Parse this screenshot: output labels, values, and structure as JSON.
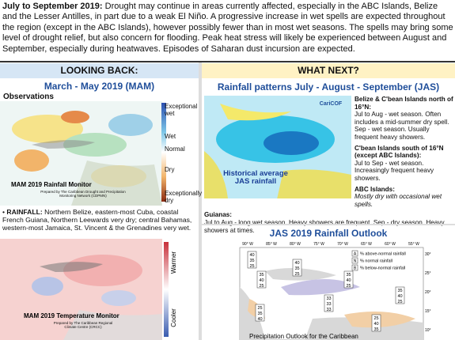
{
  "intro": {
    "lead": "July to September 2019:",
    "text": "Drought may continue in areas currently affected, especially in the ABC Islands, Belize and the Lesser Antilles, in part due to a weak El Niño. A progressive increase in wet spells are expected throughout the region (except in the ABC Islands), however possibly fewer than in most wet seasons. The spells may bring some level of drought relief, but also concern for flooding. Peak heat stress will likely be experienced between August and September, especially during heatwaves. Episodes of Saharan dust incursion are expected."
  },
  "looking_back": {
    "header": "LOOKING BACK:",
    "title": "March - May 2019 (MAM)",
    "subtitle": "Observations",
    "rain_map": {
      "caption": "MAM 2019 Rainfall Monitor",
      "credit": "Prepared by The Caribbean Drought and Precipitation Monitoring Network (CDPMN)",
      "legend": [
        "Exceptional wet",
        "Wet",
        "Normal",
        "Dry",
        "Exceptionally dry"
      ]
    },
    "rainfall": {
      "lead": "RAINFALL:",
      "text": "Northern Belize, eastern-most Cuba, coastal French Guiana, Northern Leewards very dry; central Bahamas, western-most Jamaica, St. Vincent & the Grenadines very wet."
    },
    "temp_map": {
      "caption": "MAM 2019 Temperature Monitor",
      "credit": "Prepared by The Caribbean Regional Climate Centre (CRCC)",
      "warm": "Warmer",
      "cool": "Cooler"
    }
  },
  "what_next": {
    "header": "WHAT NEXT?",
    "title": "Rainfall patterns July - August - September (JAS)",
    "pattern_map": {
      "caption": "Historical average JAS rainfall",
      "logo": "CariCOF"
    },
    "regions": [
      {
        "name": "Belize & C'bean Islands north of 16°N:",
        "text": "Jul to Aug - wet season. Often includes a mid-summer dry spell. Sep - wet season. Usually frequent heavy showers."
      },
      {
        "name": "C'bean Islands south of 16°N (except ABC Islands):",
        "text": "Jul to Sep - wet season. Increasingly frequent heavy showers."
      },
      {
        "name": "ABC Islands:",
        "text": "Mostly dry with occasional wet spells."
      },
      {
        "name": "Guianas:",
        "text": "Jul to Aug - long wet season. Heavy showers are frequent. Sep - dry season. Heavy showers at times."
      }
    ],
    "outlook": {
      "title": "JAS 2019 Rainfall Outlook",
      "caption": "Precipitation Outlook for the Caribbean",
      "legend": [
        {
          "key": "A",
          "text": "% above-normal rainfall"
        },
        {
          "key": "N",
          "text": "% normal rainfall"
        },
        {
          "key": "B",
          "text": "% below-normal rainfall"
        }
      ],
      "lon": [
        "90° W",
        "85° W",
        "80° W",
        "75° W",
        "70° W",
        "65° W",
        "60° W",
        "55° W"
      ],
      "lat": [
        "30° N",
        "25° N",
        "20° N",
        "15° N",
        "10° N"
      ],
      "boxes": [
        [
          40,
          35,
          25
        ],
        [
          35,
          40,
          25
        ],
        [
          40,
          35,
          25
        ],
        [
          35,
          40,
          25
        ],
        [
          33,
          33,
          33
        ],
        [
          35,
          40,
          25
        ],
        [
          25,
          35,
          40
        ],
        [
          25,
          40,
          35
        ]
      ]
    }
  }
}
